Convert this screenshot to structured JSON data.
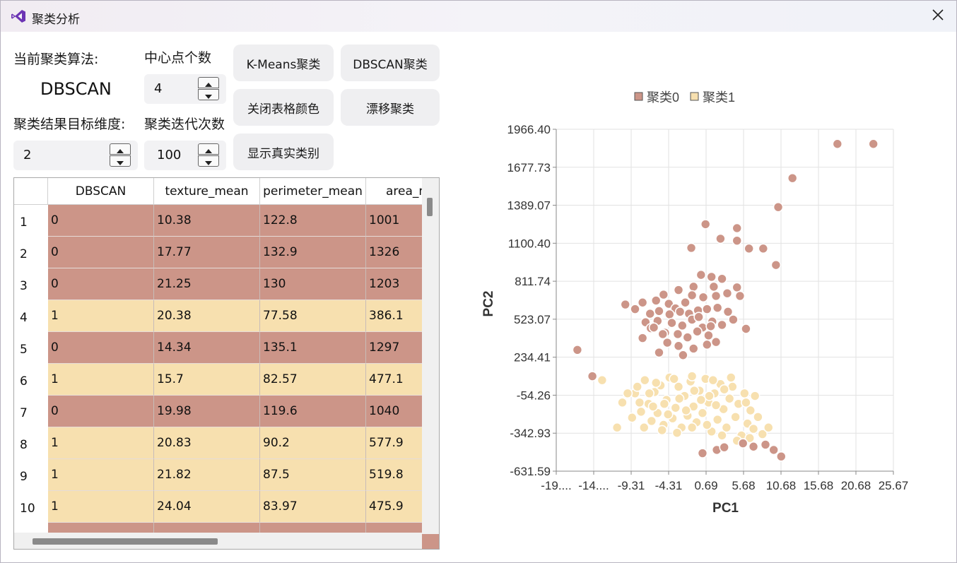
{
  "window": {
    "title": "聚类分析"
  },
  "controls": {
    "algo_label": "当前聚类算法:",
    "algo_value": "DBSCAN",
    "centers_label": "中心点个数",
    "centers_value": "4",
    "dim_label": "聚类结果目标维度:",
    "dim_value": "2",
    "iter_label": "聚类迭代次数",
    "iter_value": "100"
  },
  "buttons": {
    "kmeans": "K-Means聚类",
    "dbscan": "DBSCAN聚类",
    "close_color": "关闭表格颜色",
    "drift": "漂移聚类",
    "show_true": "显示真实类别"
  },
  "table": {
    "columns": [
      "DBSCAN",
      "texture_mean",
      "perimeter_mean",
      "area_mean"
    ],
    "rows": [
      {
        "n": "1",
        "cells": [
          "0",
          "10.38",
          "122.8",
          "1001"
        ],
        "cluster": 0
      },
      {
        "n": "2",
        "cells": [
          "0",
          "17.77",
          "132.9",
          "1326"
        ],
        "cluster": 0
      },
      {
        "n": "3",
        "cells": [
          "0",
          "21.25",
          "130",
          "1203"
        ],
        "cluster": 0
      },
      {
        "n": "4",
        "cells": [
          "1",
          "20.38",
          "77.58",
          "386.1"
        ],
        "cluster": 1
      },
      {
        "n": "5",
        "cells": [
          "0",
          "14.34",
          "135.1",
          "1297"
        ],
        "cluster": 0
      },
      {
        "n": "6",
        "cells": [
          "1",
          "15.7",
          "82.57",
          "477.1"
        ],
        "cluster": 1
      },
      {
        "n": "7",
        "cells": [
          "0",
          "19.98",
          "119.6",
          "1040"
        ],
        "cluster": 0
      },
      {
        "n": "8",
        "cells": [
          "1",
          "20.83",
          "90.2",
          "577.9"
        ],
        "cluster": 1
      },
      {
        "n": "9",
        "cells": [
          "1",
          "21.82",
          "87.5",
          "519.8"
        ],
        "cluster": 1
      },
      {
        "n": "10",
        "cells": [
          "1",
          "24.04",
          "83.97",
          "475.9"
        ],
        "cluster": 1
      }
    ],
    "colors": {
      "cluster0": "#cc9588",
      "cluster1": "#f7e0af"
    }
  },
  "chart_data": {
    "type": "scatter",
    "xlabel": "PC1",
    "ylabel": "PC2",
    "xlim": [
      -19.32,
      25.67
    ],
    "ylim": [
      -631.59,
      1966.4
    ],
    "x_ticks": [
      "-19....",
      "-14....",
      "-9.31",
      "-4.31",
      "0.69",
      "5.68",
      "10.68",
      "15.68",
      "20.68",
      "25.67"
    ],
    "y_ticks": [
      "1966.40",
      "1677.73",
      "1389.07",
      "1100.40",
      "811.74",
      "523.07",
      "234.41",
      "-54.26",
      "-342.93",
      "-631.59"
    ],
    "legend_position": "top-center",
    "series": [
      {
        "name": "聚类0",
        "color": "#cc9588",
        "points": [
          [
            18.2,
            1855
          ],
          [
            23.0,
            1855
          ],
          [
            12.2,
            1595
          ],
          [
            10.3,
            1375
          ],
          [
            10.0,
            935
          ],
          [
            0.6,
            1245
          ],
          [
            4.8,
            1215
          ],
          [
            4.8,
            1120
          ],
          [
            2.6,
            1135
          ],
          [
            -1.3,
            1065
          ],
          [
            6.4,
            1060
          ],
          [
            8.3,
            1060
          ],
          [
            0.0,
            860
          ],
          [
            1.4,
            845
          ],
          [
            2.8,
            830
          ],
          [
            -3.0,
            745
          ],
          [
            -1.0,
            770
          ],
          [
            4.8,
            765
          ],
          [
            5.2,
            700
          ],
          [
            1.7,
            770
          ],
          [
            -5.0,
            710
          ],
          [
            -7.8,
            650
          ],
          [
            -10.1,
            635
          ],
          [
            -8.8,
            600
          ],
          [
            -6.0,
            665
          ],
          [
            -4.3,
            640
          ],
          [
            -3.4,
            605
          ],
          [
            -2.1,
            650
          ],
          [
            -1.2,
            705
          ],
          [
            0.3,
            690
          ],
          [
            2.0,
            700
          ],
          [
            3.5,
            720
          ],
          [
            -6.8,
            565
          ],
          [
            -5.6,
            585
          ],
          [
            -4.2,
            560
          ],
          [
            -2.8,
            580
          ],
          [
            -1.6,
            565
          ],
          [
            -0.4,
            590
          ],
          [
            0.8,
            600
          ],
          [
            2.2,
            610
          ],
          [
            3.6,
            580
          ],
          [
            4.3,
            520
          ],
          [
            -7.4,
            500
          ],
          [
            -5.8,
            510
          ],
          [
            -3.9,
            495
          ],
          [
            -2.5,
            475
          ],
          [
            -1.2,
            520
          ],
          [
            0.2,
            460
          ],
          [
            1.5,
            505
          ],
          [
            2.8,
            480
          ],
          [
            -4.8,
            420
          ],
          [
            -3.1,
            410
          ],
          [
            -1.8,
            385
          ],
          [
            -0.5,
            430
          ],
          [
            1.0,
            400
          ],
          [
            2.0,
            350
          ],
          [
            -4.5,
            345
          ],
          [
            -3.0,
            320
          ],
          [
            -1.0,
            300
          ],
          [
            0.8,
            330
          ],
          [
            -7.8,
            380
          ],
          [
            -5.6,
            270
          ],
          [
            -6.7,
            455
          ],
          [
            6.0,
            450
          ],
          [
            -2.4,
            250
          ],
          [
            -16.5,
            290
          ],
          [
            -14.5,
            90
          ],
          [
            0.2,
            -495
          ],
          [
            2.1,
            -470
          ],
          [
            3.1,
            -450
          ],
          [
            5.6,
            -420
          ],
          [
            7.0,
            -445
          ],
          [
            8.6,
            -430
          ],
          [
            9.7,
            -470
          ],
          [
            10.7,
            -520
          ],
          [
            -5.1,
            410
          ],
          [
            -6.3,
            460
          ],
          [
            -0.3,
            540
          ],
          [
            1.3,
            470
          ]
        ]
      },
      {
        "name": "聚类1",
        "color": "#f7e0af",
        "points": [
          [
            -13.2,
            60
          ],
          [
            -10.5,
            -110
          ],
          [
            -11.2,
            -300
          ],
          [
            -9.2,
            -225
          ],
          [
            -8.8,
            -40
          ],
          [
            -8.0,
            -180
          ],
          [
            -7.5,
            60
          ],
          [
            -7.0,
            -120
          ],
          [
            -6.6,
            -250
          ],
          [
            -6.2,
            -30
          ],
          [
            -5.8,
            -190
          ],
          [
            -5.4,
            20
          ],
          [
            -5.0,
            -280
          ],
          [
            -4.6,
            -90
          ],
          [
            -4.2,
            80
          ],
          [
            -3.8,
            -230
          ],
          [
            -3.4,
            -150
          ],
          [
            -3.0,
            10
          ],
          [
            -2.6,
            -300
          ],
          [
            -2.2,
            -60
          ],
          [
            -1.8,
            -210
          ],
          [
            -1.4,
            50
          ],
          [
            -1.0,
            -140
          ],
          [
            -0.6,
            -260
          ],
          [
            -0.2,
            -20
          ],
          [
            0.2,
            -190
          ],
          [
            0.6,
            70
          ],
          [
            1.0,
            -110
          ],
          [
            1.4,
            -330
          ],
          [
            1.8,
            -40
          ],
          [
            2.2,
            -240
          ],
          [
            2.6,
            30
          ],
          [
            3.0,
            -160
          ],
          [
            3.4,
            -300
          ],
          [
            3.8,
            -80
          ],
          [
            4.2,
            10
          ],
          [
            4.6,
            -220
          ],
          [
            5.0,
            -120
          ],
          [
            5.4,
            -360
          ],
          [
            5.8,
            -40
          ],
          [
            6.2,
            -270
          ],
          [
            6.6,
            -170
          ],
          [
            7.0,
            -310
          ],
          [
            7.6,
            -220
          ],
          [
            8.2,
            -350
          ],
          [
            -6.9,
            -40
          ],
          [
            -4.9,
            -120
          ],
          [
            -2.9,
            -80
          ],
          [
            -0.9,
            -20
          ],
          [
            1.1,
            -60
          ],
          [
            3.1,
            -10
          ],
          [
            -8.5,
            10
          ],
          [
            -6.0,
            40
          ],
          [
            -3.6,
            70
          ],
          [
            -1.2,
            90
          ],
          [
            1.6,
            60
          ],
          [
            4.0,
            80
          ],
          [
            -5.2,
            -320
          ],
          [
            -3.2,
            -340
          ],
          [
            -1.2,
            -300
          ],
          [
            0.8,
            -280
          ],
          [
            2.8,
            -360
          ],
          [
            4.8,
            -400
          ],
          [
            6.5,
            -380
          ],
          [
            9.0,
            -300
          ],
          [
            -7.6,
            -300
          ],
          [
            -9.8,
            -40
          ],
          [
            -4.4,
            -200
          ],
          [
            -2.0,
            -170
          ],
          [
            0.0,
            -90
          ],
          [
            2.0,
            -130
          ],
          [
            6.0,
            -110
          ],
          [
            7.2,
            -60
          ],
          [
            -6.4,
            -140
          ],
          [
            -8.2,
            -110
          ]
        ]
      }
    ]
  }
}
